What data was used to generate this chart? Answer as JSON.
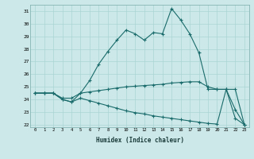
{
  "x": [
    0,
    1,
    2,
    3,
    4,
    5,
    6,
    7,
    8,
    9,
    10,
    11,
    12,
    13,
    14,
    15,
    16,
    17,
    18,
    19,
    20,
    21,
    22,
    23
  ],
  "line1": [
    24.5,
    24.5,
    24.5,
    24.0,
    23.8,
    24.5,
    25.5,
    26.8,
    27.8,
    28.7,
    29.5,
    29.2,
    28.7,
    29.3,
    29.2,
    31.2,
    30.3,
    29.2,
    27.7,
    24.8,
    24.8,
    24.8,
    23.2,
    22.0
  ],
  "line2": [
    24.5,
    24.5,
    24.5,
    24.1,
    24.1,
    24.5,
    24.6,
    24.7,
    24.8,
    24.9,
    25.0,
    25.05,
    25.1,
    25.15,
    25.2,
    25.3,
    25.35,
    25.4,
    25.4,
    25.0,
    24.8,
    24.8,
    24.8,
    22.0
  ],
  "line3": [
    24.5,
    24.5,
    24.5,
    24.0,
    23.8,
    24.1,
    23.9,
    23.7,
    23.5,
    23.3,
    23.1,
    22.95,
    22.85,
    22.7,
    22.6,
    22.5,
    22.4,
    22.3,
    22.2,
    22.1,
    22.05,
    24.8,
    22.5,
    22.0
  ],
  "line_color": "#1a6b6b",
  "bg_color": "#cce8e8",
  "grid_color": "#aad4d4",
  "xlabel": "Humidex (Indice chaleur)",
  "ylim": [
    21.8,
    31.5
  ],
  "xlim": [
    -0.5,
    23.5
  ],
  "yticks": [
    22,
    23,
    24,
    25,
    26,
    27,
    28,
    29,
    30,
    31
  ],
  "xticks": [
    0,
    1,
    2,
    3,
    4,
    5,
    6,
    7,
    8,
    9,
    10,
    11,
    12,
    13,
    14,
    15,
    16,
    17,
    18,
    19,
    20,
    21,
    22,
    23
  ]
}
